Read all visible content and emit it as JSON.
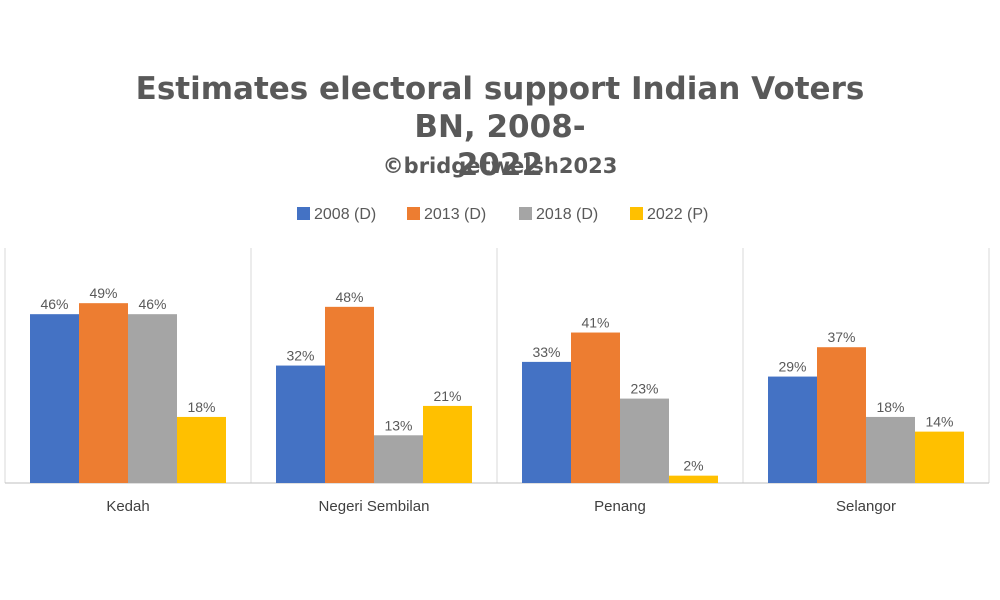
{
  "chart_data": {
    "type": "bar",
    "title_line1": "Estimates electoral support Indian Voters BN, 2008-",
    "title_line2": "2022",
    "subtitle": "©bridgetwelsh2023",
    "xlabel": "",
    "ylabel": "",
    "ylim": [
      0,
      0.55
    ],
    "grid": false,
    "legend_position": "top",
    "categories": [
      "Kedah",
      "Negeri Sembilan",
      "Penang",
      "Selangor"
    ],
    "series": [
      {
        "name": "2008 (D)",
        "color": "#4472C4",
        "values": [
          0.46,
          0.32,
          0.33,
          0.29
        ],
        "labels": [
          "46%",
          "32%",
          "33%",
          "29%"
        ]
      },
      {
        "name": "2013 (D)",
        "color": "#ED7D31",
        "values": [
          0.49,
          0.48,
          0.41,
          0.37
        ],
        "labels": [
          "49%",
          "48%",
          "41%",
          "37%"
        ]
      },
      {
        "name": "2018 (D)",
        "color": "#A5A5A5",
        "values": [
          0.46,
          0.13,
          0.23,
          0.18
        ],
        "labels": [
          "46%",
          "13%",
          "23%",
          "18%"
        ]
      },
      {
        "name": "2022 (P)",
        "color": "#FFC000",
        "values": [
          0.18,
          0.21,
          0.02,
          0.14
        ],
        "labels": [
          "18%",
          "21%",
          "2%",
          "14%"
        ]
      }
    ]
  }
}
